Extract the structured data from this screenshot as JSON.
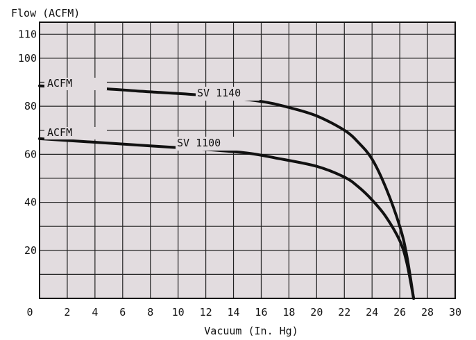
{
  "chart_data": {
    "type": "line",
    "title": "",
    "ylabel": "Flow (ACFM)",
    "xlabel": "Vacuum (In. Hg)",
    "xlim": [
      0,
      30
    ],
    "ylim": [
      0,
      115
    ],
    "x_ticks": [
      0,
      2,
      4,
      6,
      8,
      10,
      12,
      14,
      16,
      18,
      20,
      22,
      24,
      26,
      28,
      30
    ],
    "y_ticks": [
      0,
      20,
      40,
      60,
      80,
      100,
      110
    ],
    "grid": true,
    "background": "#e2dcdf",
    "line_color": "#111111",
    "series": [
      {
        "name": "SV 1140",
        "unit_label": "ACFM",
        "x": [
          0,
          4,
          8,
          12,
          16,
          18,
          20,
          22,
          23,
          24,
          25,
          26,
          26.5,
          27
        ],
        "y": [
          88.5,
          87.5,
          86,
          84.5,
          82,
          79.5,
          76,
          70,
          65,
          58,
          46,
          30,
          18,
          0
        ]
      },
      {
        "name": "SV 1100",
        "unit_label": "ACFM",
        "x": [
          0,
          4,
          8,
          12,
          15,
          17,
          20,
          22,
          23,
          24,
          25,
          26,
          26.5,
          27
        ],
        "y": [
          66.5,
          65,
          63.5,
          62,
          60.5,
          58.5,
          55,
          50.5,
          46.5,
          41,
          34,
          24,
          15,
          0
        ]
      }
    ]
  }
}
